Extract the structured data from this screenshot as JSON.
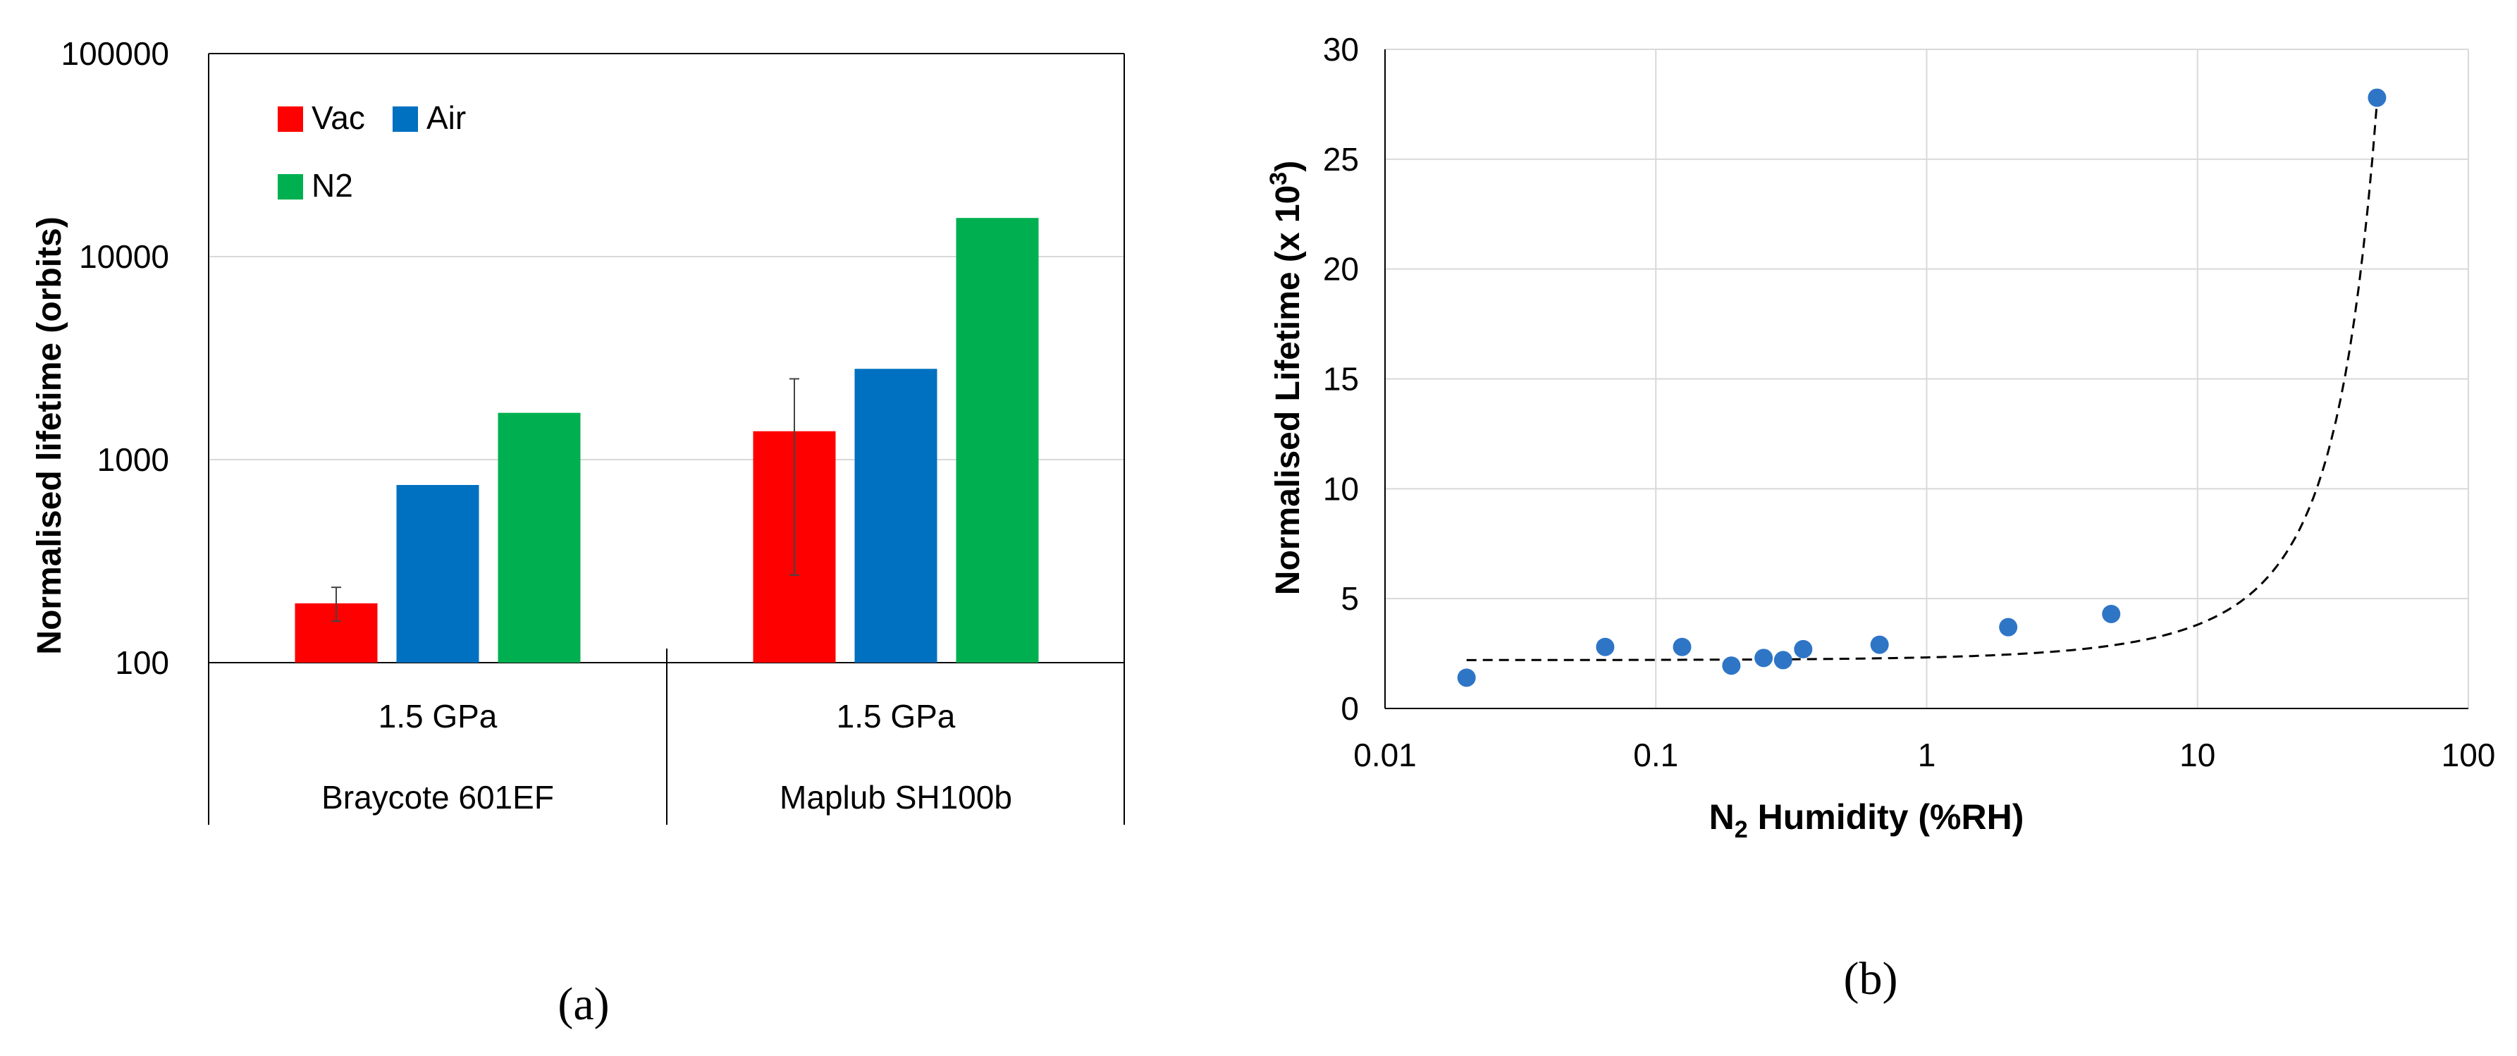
{
  "chart_data": [
    {
      "id": "a",
      "type": "bar",
      "scale": "log",
      "panel_label": "(a)",
      "ylabel": "Normalised lifetime (orbits)",
      "ylim": [
        100,
        100000
      ],
      "yticks": [
        "100",
        "1000",
        "10000",
        "100000"
      ],
      "gridlines": true,
      "legend_position": "top-left",
      "groups": [
        {
          "sub_label": "1.5 GPa",
          "label": "Braycote 601EF"
        },
        {
          "sub_label": "1.5 GPa",
          "label": "Maplub SH100b"
        }
      ],
      "series": [
        {
          "name": "Vac",
          "color": "#ff0000",
          "values": [
            196,
            1380
          ],
          "err_low": [
            160,
            270
          ],
          "err_high": [
            235,
            2500
          ]
        },
        {
          "name": "Air",
          "color": "#0070c0",
          "values": [
            750,
            2800
          ]
        },
        {
          "name": "N2",
          "color": "#00b050",
          "values": [
            1700,
            15500
          ]
        }
      ]
    },
    {
      "id": "b",
      "type": "scatter",
      "panel_label": "(b)",
      "xlabel_main": "N",
      "xlabel_sub": "2",
      "xlabel_rest": " Humidity (%RH)",
      "xscale": "log",
      "xlim": [
        0.01,
        100
      ],
      "xticks": [
        "0.01",
        "0.1",
        "1",
        "10",
        "100"
      ],
      "ylabel_main": "Normalised Lifetime (x 10",
      "ylabel_sup": "3",
      "ylabel_end": ")",
      "ylim": [
        0,
        30
      ],
      "yticks": [
        "0",
        "5",
        "10",
        "15",
        "20",
        "25",
        "30"
      ],
      "gridlines": true,
      "marker_color": "#2e75c6",
      "x": [
        0.02,
        0.065,
        0.125,
        0.19,
        0.25,
        0.295,
        0.35,
        0.67,
        2.0,
        4.8,
        46
      ],
      "y": [
        1.4,
        2.8,
        2.8,
        1.95,
        2.3,
        2.2,
        2.7,
        2.9,
        3.7,
        4.3,
        27.8
      ],
      "trendline": {
        "style": "dashed",
        "x_start": 0.02,
        "x_end": 46,
        "a": 2.2,
        "b": 0.055
      }
    }
  ]
}
